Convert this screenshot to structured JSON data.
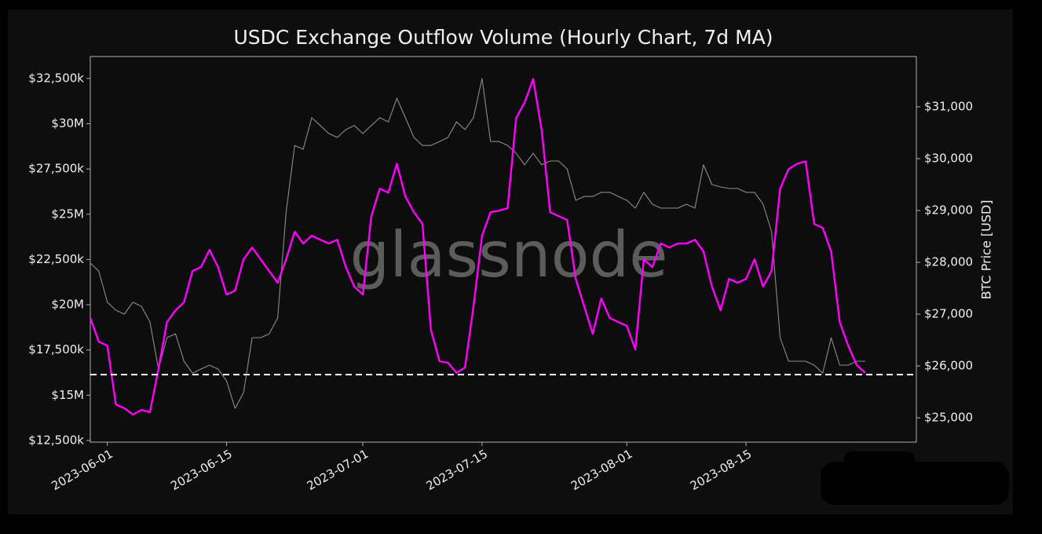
{
  "chart_data": {
    "type": "line",
    "title": "USDC Exchange Outflow Volume (Hourly Chart, 7d MA)",
    "y2label": "BTC Price [USD]",
    "watermark": "glassnode",
    "x": [
      "2023-05-30",
      "2023-05-31",
      "2023-06-01",
      "2023-06-02",
      "2023-06-03",
      "2023-06-04",
      "2023-06-05",
      "2023-06-06",
      "2023-06-07",
      "2023-06-08",
      "2023-06-09",
      "2023-06-10",
      "2023-06-11",
      "2023-06-12",
      "2023-06-13",
      "2023-06-14",
      "2023-06-15",
      "2023-06-16",
      "2023-06-17",
      "2023-06-18",
      "2023-06-19",
      "2023-06-20",
      "2023-06-21",
      "2023-06-22",
      "2023-06-23",
      "2023-06-24",
      "2023-06-25",
      "2023-06-26",
      "2023-06-27",
      "2023-06-28",
      "2023-06-29",
      "2023-06-30",
      "2023-07-01",
      "2023-07-02",
      "2023-07-03",
      "2023-07-04",
      "2023-07-05",
      "2023-07-06",
      "2023-07-07",
      "2023-07-08",
      "2023-07-09",
      "2023-07-10",
      "2023-07-11",
      "2023-07-12",
      "2023-07-13",
      "2023-07-14",
      "2023-07-15",
      "2023-07-16",
      "2023-07-17",
      "2023-07-18",
      "2023-07-19",
      "2023-07-20",
      "2023-07-21",
      "2023-07-22",
      "2023-07-23",
      "2023-07-24",
      "2023-07-25",
      "2023-07-26",
      "2023-07-27",
      "2023-07-28",
      "2023-07-29",
      "2023-07-30",
      "2023-07-31",
      "2023-08-01",
      "2023-08-02",
      "2023-08-03",
      "2023-08-04",
      "2023-08-05",
      "2023-08-06",
      "2023-08-07",
      "2023-08-08",
      "2023-08-09",
      "2023-08-10",
      "2023-08-11",
      "2023-08-12",
      "2023-08-13",
      "2023-08-14",
      "2023-08-15",
      "2023-08-16",
      "2023-08-17",
      "2023-08-18",
      "2023-08-19",
      "2023-08-20",
      "2023-08-21",
      "2023-08-22",
      "2023-08-23",
      "2023-08-24",
      "2023-08-25",
      "2023-08-26",
      "2023-08-27",
      "2023-08-28",
      "2023-08-29"
    ],
    "series": [
      {
        "color": "#8c8c8c",
        "axis": "y2",
        "values": [
          27985,
          27830,
          27230,
          27075,
          27000,
          27230,
          27150,
          26850,
          25940,
          26545,
          26620,
          26090,
          25860,
          25940,
          26015,
          25940,
          25710,
          25180,
          25485,
          26545,
          26545,
          26620,
          26925,
          28970,
          30255,
          30180,
          30790,
          30640,
          30485,
          30410,
          30560,
          30640,
          30485,
          30640,
          30790,
          30710,
          31165,
          30790,
          30410,
          30255,
          30255,
          30330,
          30410,
          30710,
          30560,
          30790,
          31545,
          30330,
          30330,
          30255,
          30105,
          29880,
          30105,
          29880,
          29955,
          29955,
          29800,
          29195,
          29270,
          29270,
          29350,
          29350,
          29270,
          29195,
          29045,
          29350,
          29120,
          29045,
          29045,
          29045,
          29120,
          29045,
          29880,
          29500,
          29455,
          29425,
          29425,
          29350,
          29350,
          29120,
          28590,
          26545,
          26090,
          26090,
          26090,
          26015,
          25860,
          26545,
          26015,
          26015,
          26090,
          26090
        ]
      },
      {
        "color": "#ff00ff",
        "axis": "y",
        "values": [
          19.26,
          17.96,
          17.74,
          14.49,
          14.28,
          13.93,
          14.19,
          14.06,
          16.44,
          19.04,
          19.69,
          20.13,
          21.86,
          22.08,
          23.03,
          22.08,
          20.56,
          20.78,
          22.51,
          23.16,
          22.51,
          21.86,
          21.21,
          22.51,
          24.03,
          23.38,
          23.81,
          23.59,
          23.38,
          23.59,
          22.08,
          21.0,
          20.56,
          24.89,
          26.41,
          26.19,
          27.79,
          25.97,
          25.11,
          24.46,
          18.61,
          16.88,
          16.79,
          16.23,
          16.53,
          19.91,
          23.81,
          25.11,
          25.2,
          25.33,
          30.31,
          31.17,
          32.47,
          29.66,
          25.11,
          24.89,
          24.68,
          21.43,
          19.91,
          18.39,
          20.34,
          19.26,
          19.04,
          18.83,
          17.53,
          22.51,
          22.08,
          23.38,
          23.16,
          23.38,
          23.38,
          23.59,
          22.94,
          21.0,
          19.69,
          21.43,
          21.21,
          21.43,
          22.51,
          21.0,
          21.86,
          26.41,
          27.49,
          27.79,
          27.92,
          24.46,
          24.24,
          22.94,
          19.04,
          17.74,
          16.66,
          16.23
        ]
      }
    ],
    "reference_line": {
      "value": 16.14,
      "color": "#ffffff",
      "style": "dashed"
    },
    "xlim": [
      "2023-05-30",
      "2023-09-04"
    ],
    "xticks": [
      "2023-06-01",
      "2023-06-15",
      "2023-07-01",
      "2023-07-15",
      "2023-08-01",
      "2023-08-15"
    ],
    "ylim": [
      12.41,
      33.71
    ],
    "yticks": [
      {
        "value": 12.5,
        "label": "$12,500k"
      },
      {
        "value": 15,
        "label": "$15M"
      },
      {
        "value": 17.5,
        "label": "$17,500k"
      },
      {
        "value": 20,
        "label": "$20M"
      },
      {
        "value": 22.5,
        "label": "$22,500k"
      },
      {
        "value": 25,
        "label": "$25M"
      },
      {
        "value": 27.5,
        "label": "$27,500k"
      },
      {
        "value": 30,
        "label": "$30M"
      },
      {
        "value": 32.5,
        "label": "$32,500k"
      }
    ],
    "y2lim": [
      24530,
      31970
    ],
    "y2ticks": [
      {
        "value": 25000,
        "label": "$25,000"
      },
      {
        "value": 26000,
        "label": "$26,000"
      },
      {
        "value": 27000,
        "label": "$27,000"
      },
      {
        "value": 28000,
        "label": "$28,000"
      },
      {
        "value": 29000,
        "label": "$29,000"
      },
      {
        "value": 30000,
        "label": "$30,000"
      },
      {
        "value": 31000,
        "label": "$31,000"
      }
    ],
    "grid": false
  }
}
